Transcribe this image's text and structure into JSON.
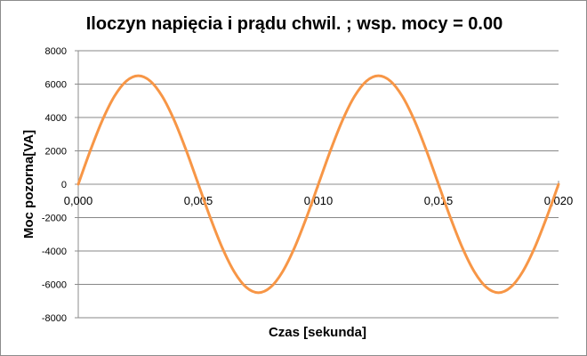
{
  "chart_data": {
    "type": "line",
    "title": "Iloczyn napięcia i prądu chwil. ; wsp. mocy = 0.00",
    "xlabel": "Czas [sekunda]",
    "ylabel": "Moc pozorna[VA]",
    "xlim": [
      0,
      0.02
    ],
    "ylim": [
      -8000,
      8000
    ],
    "x_ticks": [
      "0,000",
      "0,005",
      "0,010",
      "0,015",
      "0,020"
    ],
    "y_ticks": [
      "8000",
      "6000",
      "4000",
      "2000",
      "0",
      "-2000",
      "-4000",
      "-6000",
      "-8000"
    ],
    "grid": true,
    "legend": "none",
    "series": [
      {
        "color": "#f79646",
        "x": [
          0,
          0.0005,
          0.001,
          0.0015,
          0.002,
          0.0025,
          0.003,
          0.0035,
          0.004,
          0.0045,
          0.005,
          0.0055,
          0.006,
          0.0065,
          0.007,
          0.0075,
          0.008,
          0.0085,
          0.009,
          0.0095,
          0.01,
          0.0105,
          0.011,
          0.0115,
          0.012,
          0.0125,
          0.013,
          0.0135,
          0.014,
          0.0145,
          0.015,
          0.0155,
          0.016,
          0.0165,
          0.017,
          0.0175,
          0.018,
          0.0185,
          0.019,
          0.0195,
          0.02
        ],
        "y": [
          0,
          2009,
          3821,
          5259,
          6182,
          6500,
          6182,
          5259,
          3821,
          2009,
          0,
          -2009,
          -3821,
          -5259,
          -6182,
          -6500,
          -6182,
          -5259,
          -3821,
          -2009,
          0,
          2009,
          3821,
          5259,
          6182,
          6500,
          6182,
          5259,
          3821,
          2009,
          0,
          -2009,
          -3821,
          -5259,
          -6182,
          -6500,
          -6182,
          -5259,
          -3821,
          -2009,
          0
        ]
      }
    ]
  },
  "colors": {
    "line": "#f79646",
    "grid": "#878787",
    "border": "#8c8c8c"
  }
}
